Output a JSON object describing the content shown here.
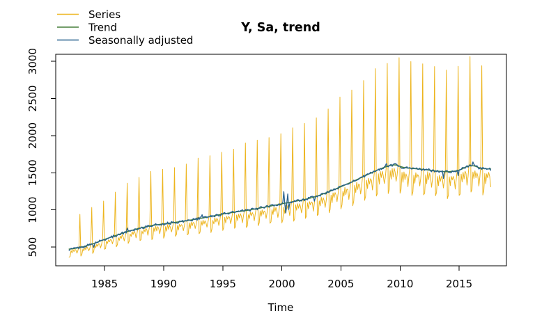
{
  "figure": {
    "background_color": "#ffffff",
    "axis_color": "#000000"
  },
  "chart_data": {
    "type": "line",
    "title": "Y, Sa, trend",
    "xlabel": "Time",
    "ylabel": "",
    "grid": false,
    "legend_position": "topleft",
    "x_ticks": [
      1985,
      1990,
      1995,
      2000,
      2005,
      2010,
      2015
    ],
    "y_ticks": [
      500,
      1000,
      1500,
      2000,
      2500,
      3000
    ],
    "xlim": [
      1980.87,
      2019.0
    ],
    "ylim": [
      247,
      3095
    ],
    "start": 1982.0,
    "end": 2017.667,
    "frequency": 12,
    "series": [
      {
        "name": "Series",
        "color": "#EDB51E",
        "width": 1.0
      },
      {
        "name": "Trend",
        "color": "#457F38",
        "width": 1.5
      },
      {
        "name": "Seasonally adjusted",
        "color": "#27618E",
        "width": 1.3
      }
    ],
    "trend_anchors": {
      "years": [
        1982,
        1983,
        1984,
        1985,
        1986,
        1987,
        1988,
        1989,
        1990,
        1991,
        1992,
        1993,
        1994,
        1995,
        1996,
        1997,
        1998,
        1999,
        2000,
        2001,
        2002,
        2003,
        2004,
        2005,
        2006,
        2007,
        2008,
        2009,
        2009.6,
        2010.2,
        2011,
        2012,
        2013,
        2014,
        2015,
        2015.7,
        2016.2,
        2016.7,
        2017.2,
        2017.67
      ],
      "values": [
        468,
        495,
        542,
        602,
        658,
        712,
        755,
        790,
        812,
        832,
        856,
        882,
        912,
        944,
        970,
        992,
        1020,
        1050,
        1082,
        1112,
        1142,
        1185,
        1246,
        1312,
        1382,
        1456,
        1532,
        1592,
        1612,
        1572,
        1558,
        1545,
        1524,
        1512,
        1530,
        1590,
        1600,
        1565,
        1555,
        1548
      ]
    },
    "seasonal_factors": [
      0.77,
      0.8,
      0.95,
      0.88,
      0.97,
      0.91,
      0.96,
      0.93,
      0.85,
      0.92,
      1.01,
      1.9
    ],
    "series_noise": 0.015,
    "sa_noise": 18,
    "sa_outliers": [
      {
        "t": 1984.083,
        "delta": -45
      },
      {
        "t": 1986.917,
        "delta": 55
      },
      {
        "t": 1993.25,
        "delta": 60
      },
      {
        "t": 2000.167,
        "delta": 175
      },
      {
        "t": 2000.333,
        "delta": -150
      },
      {
        "t": 2000.5,
        "delta": 110
      },
      {
        "t": 2000.583,
        "delta": -80
      },
      {
        "t": 2002.75,
        "delta": -60
      },
      {
        "t": 2008.833,
        "delta": 45
      },
      {
        "t": 2013.667,
        "delta": -85
      },
      {
        "t": 2014.917,
        "delta": -55
      },
      {
        "t": 2016.167,
        "delta": 40
      }
    ]
  }
}
